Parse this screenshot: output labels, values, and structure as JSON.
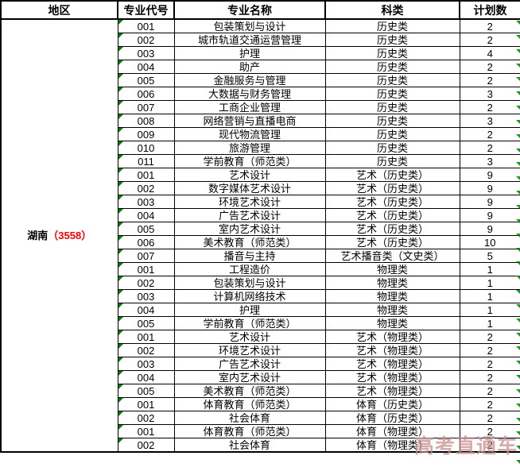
{
  "table": {
    "headers": [
      "地区",
      "专业代号",
      "专业名称",
      "科类",
      "计划数"
    ],
    "region": {
      "name": "湖南",
      "code": "（3558）"
    },
    "rows": [
      {
        "code": "001",
        "major": "包装策划与设计",
        "category": "历史类",
        "count": "2"
      },
      {
        "code": "002",
        "major": "城市轨道交通运营管理",
        "category": "历史类",
        "count": "2"
      },
      {
        "code": "003",
        "major": "护理",
        "category": "历史类",
        "count": "4"
      },
      {
        "code": "004",
        "major": "助产",
        "category": "历史类",
        "count": "2"
      },
      {
        "code": "005",
        "major": "金融服务与管理",
        "category": "历史类",
        "count": "2"
      },
      {
        "code": "006",
        "major": "大数据与财务管理",
        "category": "历史类",
        "count": "3"
      },
      {
        "code": "007",
        "major": "工商企业管理",
        "category": "历史类",
        "count": "2"
      },
      {
        "code": "008",
        "major": "网络营销与直播电商",
        "category": "历史类",
        "count": "3"
      },
      {
        "code": "009",
        "major": "现代物流管理",
        "category": "历史类",
        "count": "2"
      },
      {
        "code": "010",
        "major": "旅游管理",
        "category": "历史类",
        "count": "2"
      },
      {
        "code": "011",
        "major": "学前教育（师范类）",
        "category": "历史类",
        "count": "3"
      },
      {
        "code": "001",
        "major": "艺术设计",
        "category": "艺术（历史类）",
        "count": "9"
      },
      {
        "code": "002",
        "major": "数字媒体艺术设计",
        "category": "艺术（历史类）",
        "count": "9"
      },
      {
        "code": "003",
        "major": "环境艺术设计",
        "category": "艺术（历史类）",
        "count": "9"
      },
      {
        "code": "004",
        "major": "广告艺术设计",
        "category": "艺术（历史类）",
        "count": "9"
      },
      {
        "code": "005",
        "major": "室内艺术设计",
        "category": "艺术（历史类）",
        "count": "9"
      },
      {
        "code": "006",
        "major": "美术教育（师范类）",
        "category": "艺术（历史类）",
        "count": "10"
      },
      {
        "code": "007",
        "major": "播音与主持",
        "category": "艺术播音类（文史类）",
        "count": "5"
      },
      {
        "code": "001",
        "major": "工程造价",
        "category": "物理类",
        "count": "1"
      },
      {
        "code": "002",
        "major": "包装策划与设计",
        "category": "物理类",
        "count": "1"
      },
      {
        "code": "003",
        "major": "计算机网络技术",
        "category": "物理类",
        "count": "1"
      },
      {
        "code": "004",
        "major": "护理",
        "category": "物理类",
        "count": "1"
      },
      {
        "code": "005",
        "major": "学前教育（师范类）",
        "category": "物理类",
        "count": "1"
      },
      {
        "code": "001",
        "major": "艺术设计",
        "category": "艺术（物理类）",
        "count": "2"
      },
      {
        "code": "002",
        "major": "环境艺术设计",
        "category": "艺术（物理类）",
        "count": "2"
      },
      {
        "code": "003",
        "major": "广告艺术设计",
        "category": "艺术（物理类）",
        "count": "2"
      },
      {
        "code": "004",
        "major": "室内艺术设计",
        "category": "艺术（物理类）",
        "count": "2"
      },
      {
        "code": "005",
        "major": "美术教育（师范类）",
        "category": "艺术（物理类）",
        "count": "2"
      },
      {
        "code": "001",
        "major": "体育教育（师范类）",
        "category": "体育（历史类）",
        "count": "2"
      },
      {
        "code": "002",
        "major": "社会体育",
        "category": "体育（历史类）",
        "count": "2"
      },
      {
        "code": "001",
        "major": "体育教育（师范类）",
        "category": "体育（物理类）",
        "count": "2"
      },
      {
        "code": "002",
        "major": "社会体育",
        "category": "体育（物理类）",
        "count": "2"
      }
    ]
  },
  "watermark": "高考直通车",
  "colors": {
    "border": "#000000",
    "region_code_red": "#ff0000",
    "error_triangle_green": "#008000",
    "watermark_pink": "#c98f8f"
  }
}
